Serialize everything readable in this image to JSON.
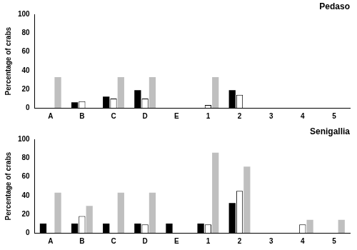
{
  "chart_data": [
    {
      "type": "bar",
      "title": "Pedaso",
      "y_label": "Percentage of crabs",
      "categories": [
        "A",
        "B",
        "C",
        "D",
        "E",
        "1",
        "2",
        "3",
        "4",
        "5"
      ],
      "series": [
        {
          "color": "#000000",
          "values": [
            0,
            6,
            12,
            19,
            0,
            0,
            19,
            0,
            0,
            0
          ]
        },
        {
          "color": "#ffffff",
          "values": [
            0,
            7,
            10,
            10,
            0,
            3,
            14,
            0,
            0,
            0
          ]
        },
        {
          "color": "#bfbfbf",
          "values": [
            33,
            0,
            33,
            33,
            0,
            33,
            0,
            0,
            0,
            0
          ]
        }
      ],
      "ylim": [
        0,
        100
      ],
      "yticks": [
        0,
        20,
        40,
        60,
        80,
        100
      ],
      "grid": false
    },
    {
      "type": "bar",
      "title": "Senigallia",
      "y_label": "Percentage of crabs",
      "categories": [
        "A",
        "B",
        "C",
        "D",
        "E",
        "1",
        "2",
        "3",
        "4",
        "5"
      ],
      "series": [
        {
          "color": "#000000",
          "values": [
            10,
            10,
            10,
            10,
            10,
            10,
            32,
            0,
            0,
            0
          ]
        },
        {
          "color": "#ffffff",
          "values": [
            0,
            18,
            0,
            9,
            0,
            9,
            45,
            0,
            9,
            0
          ]
        },
        {
          "color": "#bfbfbf",
          "values": [
            43,
            29,
            43,
            43,
            0,
            86,
            71,
            0,
            14,
            14
          ]
        }
      ],
      "ylim": [
        0,
        100
      ],
      "yticks": [
        0,
        20,
        40,
        60,
        80,
        100
      ],
      "grid": false
    }
  ]
}
